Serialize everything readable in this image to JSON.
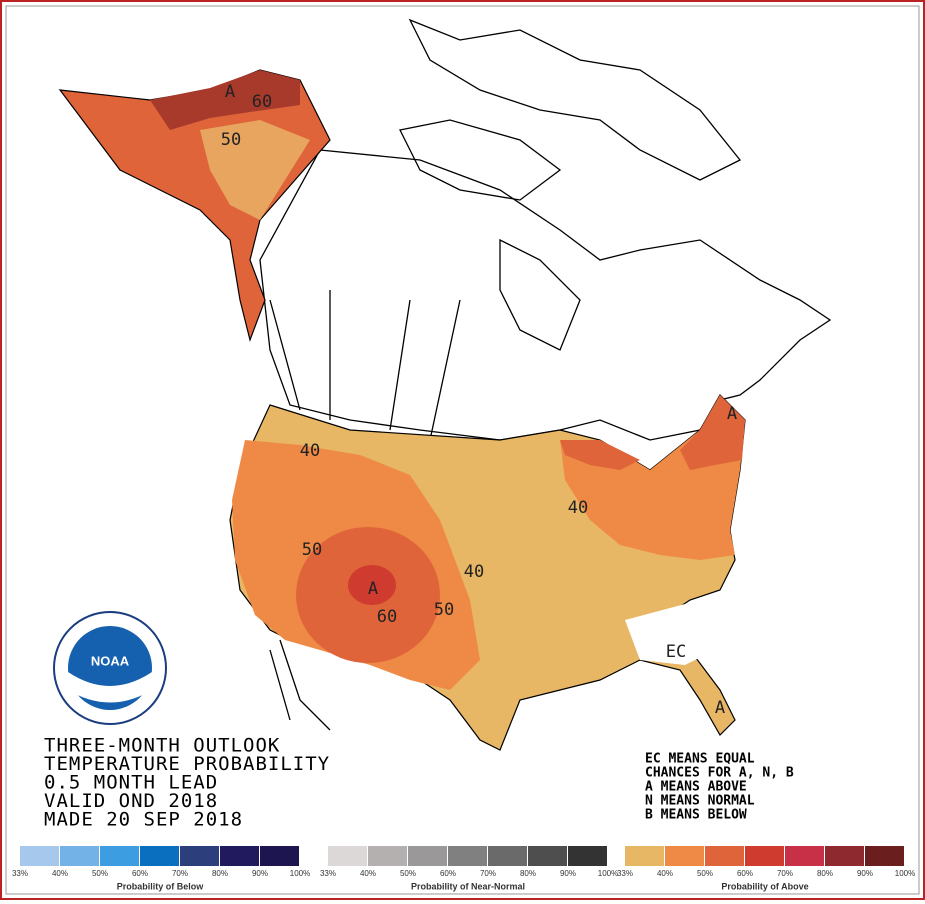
{
  "header": {
    "lines": [
      "THREE-MONTH OUTLOOK",
      "TEMPERATURE PROBABILITY",
      "0.5 MONTH LEAD",
      "VALID OND 2018",
      "MADE 20 SEP 2018"
    ]
  },
  "notes": [
    "EC MEANS EQUAL",
    "CHANCES FOR A, N, B",
    "A MEANS ABOVE",
    "N MEANS NORMAL",
    "B MEANS BELOW"
  ],
  "logo": {
    "text": "NOAA"
  },
  "map_labels": [
    "A",
    "60",
    "50",
    "40",
    "50",
    "A",
    "60",
    "50",
    "40",
    "40",
    "A",
    "A",
    "EC"
  ],
  "legends": [
    {
      "caption": "Probability of Below",
      "labels": [
        "33%",
        "40%",
        "50%",
        "60%",
        "70%",
        "80%",
        "90%",
        "100%"
      ],
      "colors": [
        "#a6c8ec",
        "#73b2e6",
        "#3c9ee0",
        "#0a6fbf",
        "#2c3f7c",
        "#221a5e",
        "#1c1550"
      ]
    },
    {
      "caption": "Probability of Near-Normal",
      "labels": [
        "33%",
        "40%",
        "50%",
        "60%",
        "70%",
        "80%",
        "90%",
        "100%"
      ],
      "colors": [
        "#ddd8d8",
        "#b4b0b0",
        "#9a9898",
        "#808080",
        "#6a6a6a",
        "#4e4e4e",
        "#333333"
      ]
    },
    {
      "caption": "Probability of Above",
      "labels": [
        "33%",
        "40%",
        "50%",
        "60%",
        "70%",
        "80%",
        "90%",
        "100%"
      ],
      "colors": [
        "#e8b765",
        "#ee8a45",
        "#e0643a",
        "#cf3b2f",
        "#c83048",
        "#8e2a2f",
        "#6a1e1e"
      ]
    }
  ]
}
